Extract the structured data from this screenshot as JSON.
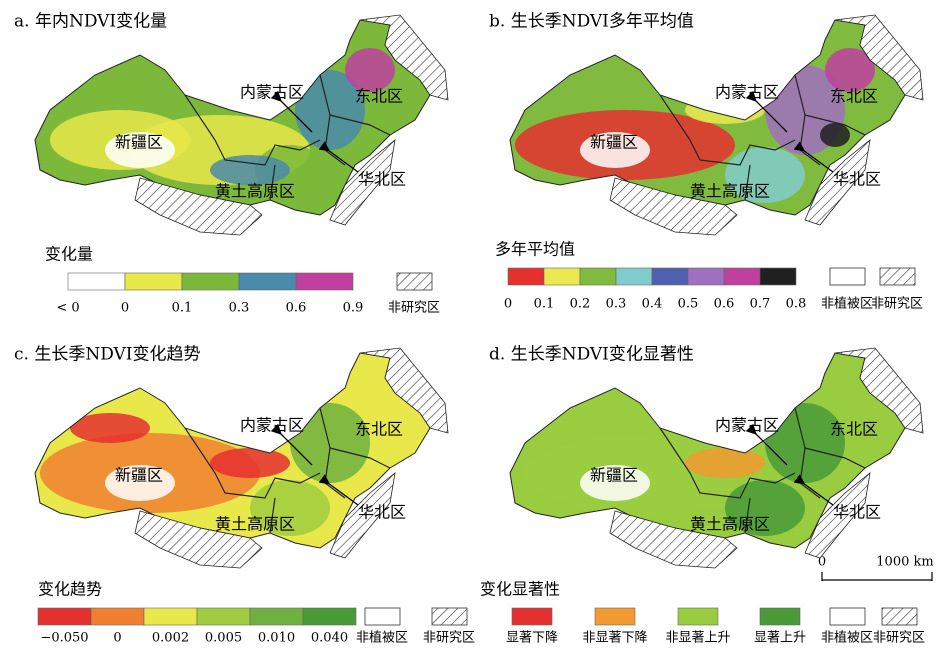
{
  "panels": [
    {
      "title": "a. 年内NDVI变化量",
      "regions": [
        "新疆区",
        "内蒙古区",
        "东北区",
        "黄土高原区",
        "华北区"
      ],
      "legend": {
        "title": "变化量",
        "labels": [
          "< 0",
          "0",
          "0.1",
          "0.3",
          "0.6",
          "0.9"
        ],
        "colors": [
          "#ffffff",
          "#e8e84a",
          "#7cb83a",
          "#4a8aaa",
          "#c040a0"
        ],
        "extra": [
          "非研究区"
        ]
      }
    },
    {
      "title": "b. 生长季NDVI多年平均值",
      "regions": [
        "新疆区",
        "内蒙古区",
        "东北区",
        "黄土高原区",
        "华北区"
      ],
      "legend": {
        "title": "多年平均值",
        "labels": [
          "0",
          "0.1",
          "0.2",
          "0.3",
          "0.4",
          "0.5",
          "0.6",
          "0.7",
          "0.8"
        ],
        "colors": [
          "#e53030",
          "#eaea50",
          "#80bb40",
          "#80cccc",
          "#5060b0",
          "#a070c0",
          "#c040a0",
          "#202020"
        ],
        "extra": [
          "非植被区",
          "非研究区"
        ]
      }
    },
    {
      "title": "c. 生长季NDVI变化趋势",
      "regions": [
        "新疆区",
        "内蒙古区",
        "东北区",
        "黄土高原区",
        "华北区"
      ],
      "legend": {
        "title": "变化趋势",
        "labels": [
          "−0.050",
          "0",
          "0.002",
          "0.005",
          "0.010",
          "0.040"
        ],
        "colors": [
          "#e53030",
          "#f08030",
          "#e8e84a",
          "#a0cc40",
          "#70b040",
          "#4a9a3a"
        ],
        "extra": [
          "非植被区",
          "非研究区"
        ]
      }
    },
    {
      "title": "d. 生长季NDVI变化显著性",
      "regions": [
        "新疆区",
        "内蒙古区",
        "东北区",
        "黄土高原区",
        "华北区"
      ],
      "legend": {
        "title": "变化显著性",
        "labels": [
          "显著下降",
          "非显著下降",
          "非显著上升",
          "显著上升"
        ],
        "colors": [
          "#e53030",
          "#f09a30",
          "#9acc40",
          "#4a9a3a"
        ],
        "extra": [
          "非植被区",
          "非研究区"
        ]
      }
    }
  ],
  "scale_bar": {
    "labels": [
      "0",
      "1000 km"
    ]
  }
}
